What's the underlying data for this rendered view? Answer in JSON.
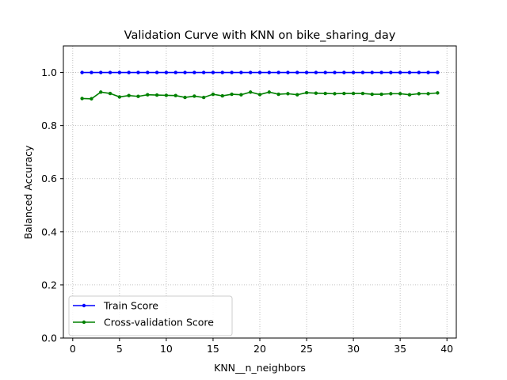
{
  "chart_data": {
    "type": "line",
    "title": "Validation Curve with KNN on bike_sharing_day",
    "xlabel": "KNN__n_neighbors",
    "ylabel": "Balanced Accuracy",
    "xlim": [
      -1,
      41
    ],
    "ylim": [
      0.0,
      1.1
    ],
    "xticks": [
      0,
      5,
      10,
      15,
      20,
      25,
      30,
      35,
      40
    ],
    "yticks": [
      0.0,
      0.2,
      0.4,
      0.6,
      0.8,
      1.0
    ],
    "ytick_labels": [
      "0.0",
      "0.2",
      "0.4",
      "0.6",
      "0.8",
      "1.0"
    ],
    "grid": true,
    "legend_position": "lower-left",
    "x": [
      1,
      2,
      3,
      4,
      5,
      6,
      7,
      8,
      9,
      10,
      11,
      12,
      13,
      14,
      15,
      16,
      17,
      18,
      19,
      20,
      21,
      22,
      23,
      24,
      25,
      26,
      27,
      28,
      29,
      30,
      31,
      32,
      33,
      34,
      35,
      36,
      37,
      38,
      39
    ],
    "series": [
      {
        "name": "Train Score",
        "color": "#0000ff",
        "values": [
          1.0,
          1.0,
          1.0,
          1.0,
          1.0,
          1.0,
          1.0,
          1.0,
          1.0,
          1.0,
          1.0,
          1.0,
          1.0,
          1.0,
          1.0,
          1.0,
          1.0,
          1.0,
          1.0,
          1.0,
          1.0,
          1.0,
          1.0,
          1.0,
          1.0,
          1.0,
          1.0,
          1.0,
          1.0,
          1.0,
          1.0,
          1.0,
          1.0,
          1.0,
          1.0,
          1.0,
          1.0,
          1.0,
          1.0
        ]
      },
      {
        "name": "Cross-validation Score",
        "color": "#008000",
        "values": [
          0.902,
          0.901,
          0.926,
          0.921,
          0.908,
          0.913,
          0.91,
          0.916,
          0.915,
          0.914,
          0.913,
          0.906,
          0.911,
          0.906,
          0.918,
          0.912,
          0.918,
          0.916,
          0.926,
          0.917,
          0.926,
          0.918,
          0.92,
          0.916,
          0.924,
          0.922,
          0.921,
          0.92,
          0.921,
          0.921,
          0.921,
          0.918,
          0.918,
          0.92,
          0.92,
          0.916,
          0.92,
          0.92,
          0.923
        ]
      }
    ]
  }
}
